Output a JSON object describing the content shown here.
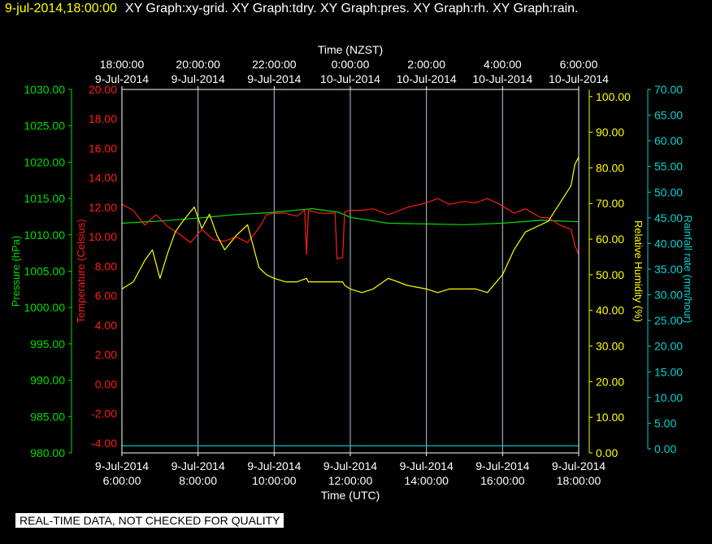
{
  "header": {
    "date": "9-jul-2014,18:00:00",
    "titles": "XY Graph:xy-grid.  XY Graph:tdry.  XY Graph:pres.  XY Graph:rh.  XY Graph:rain."
  },
  "footer": "REAL-TIME DATA, NOT CHECKED FOR QUALITY",
  "colors": {
    "background": "#000000",
    "frame": "#ffffff",
    "grid": "#b4c8dc",
    "pressure": "#00dd00",
    "temperature": "#ff1a1a",
    "humidity": "#ffff00",
    "rain": "#00d2d2"
  },
  "chart_data": {
    "type": "line",
    "grid": true,
    "x_top": {
      "title": "Time (NZST)",
      "ticks": [
        {
          "time": "18:00:00",
          "date": "9-Jul-2014"
        },
        {
          "time": "20:00:00",
          "date": "9-Jul-2014"
        },
        {
          "time": "22:00:00",
          "date": "9-Jul-2014"
        },
        {
          "time": "0:00:00",
          "date": "10-Jul-2014"
        },
        {
          "time": "2:00:00",
          "date": "10-Jul-2014"
        },
        {
          "time": "4:00:00",
          "date": "10-Jul-2014"
        },
        {
          "time": "6:00:00",
          "date": "10-Jul-2014"
        }
      ]
    },
    "x_bottom": {
      "title": "Time (UTC)",
      "ticks": [
        {
          "date": "9-Jul-2014",
          "time": "6:00:00"
        },
        {
          "date": "9-Jul-2014",
          "time": "8:00:00"
        },
        {
          "date": "9-Jul-2014",
          "time": "10:00:00"
        },
        {
          "date": "9-Jul-2014",
          "time": "12:00:00"
        },
        {
          "date": "9-Jul-2014",
          "time": "14:00:00"
        },
        {
          "date": "9-Jul-2014",
          "time": "16:00:00"
        },
        {
          "date": "9-Jul-2014",
          "time": "18:00:00"
        }
      ]
    },
    "x_hours_utc": [
      6,
      18
    ],
    "axes": {
      "pressure": {
        "label": "Pressure (hPa)",
        "ylim": [
          980,
          1030
        ],
        "ticks": [
          "1030.00",
          "1025.00",
          "1020.00",
          "1015.00",
          "1010.00",
          "1005.00",
          "1000.00",
          "995.00",
          "990.00",
          "985.00",
          "980.00"
        ]
      },
      "temperature": {
        "label": "Temperature (Celsius)",
        "ylim": [
          -4.67,
          20
        ],
        "ticks": [
          "20.00",
          "18.00",
          "16.00",
          "14.00",
          "12.00",
          "10.00",
          "8.00",
          "6.00",
          "4.00",
          "2.00",
          "0.00",
          "-2.00",
          "-4.00"
        ]
      },
      "humidity": {
        "label": "Relative Humidity (%)",
        "ylim": [
          0,
          102
        ],
        "ticks": [
          "100.00",
          "90.00",
          "80.00",
          "70.00",
          "60.00",
          "50.00",
          "40.00",
          "30.00",
          "20.00",
          "10.00",
          "0.00"
        ]
      },
      "rain": {
        "label": "Rainfall rate (mm/hour)",
        "ylim": [
          0,
          70
        ],
        "ticks": [
          "70.00",
          "65.00",
          "60.00",
          "55.00",
          "50.00",
          "45.00",
          "40.00",
          "35.00",
          "30.00",
          "25.00",
          "20.00",
          "15.00",
          "10.00",
          "5.00",
          "0.00"
        ]
      }
    },
    "series": [
      {
        "key": "pressure",
        "values": [
          [
            6.0,
            1011.6
          ],
          [
            7.0,
            1011.9
          ],
          [
            8.0,
            1012.3
          ],
          [
            9.0,
            1012.8
          ],
          [
            10.0,
            1013.1
          ],
          [
            11.0,
            1013.6
          ],
          [
            11.7,
            1013.1
          ],
          [
            12.0,
            1012.4
          ],
          [
            13.0,
            1011.6
          ],
          [
            14.0,
            1011.5
          ],
          [
            15.0,
            1011.4
          ],
          [
            16.0,
            1011.6
          ],
          [
            17.0,
            1012.0
          ],
          [
            18.0,
            1011.8
          ]
        ]
      },
      {
        "key": "temperature",
        "values": [
          [
            6.0,
            12.2
          ],
          [
            6.3,
            11.8
          ],
          [
            6.6,
            10.8
          ],
          [
            6.9,
            11.5
          ],
          [
            7.2,
            10.7
          ],
          [
            7.5,
            10.2
          ],
          [
            7.8,
            9.6
          ],
          [
            8.1,
            10.5
          ],
          [
            8.4,
            9.8
          ],
          [
            8.7,
            9.7
          ],
          [
            9.0,
            10.0
          ],
          [
            9.3,
            9.6
          ],
          [
            9.6,
            10.6
          ],
          [
            9.8,
            11.5
          ],
          [
            10.0,
            11.6
          ],
          [
            10.3,
            11.6
          ],
          [
            10.6,
            11.4
          ],
          [
            10.8,
            11.8
          ],
          [
            10.85,
            8.8
          ],
          [
            10.9,
            11.8
          ],
          [
            11.2,
            11.6
          ],
          [
            11.6,
            11.6
          ],
          [
            11.65,
            8.5
          ],
          [
            11.8,
            8.6
          ],
          [
            11.85,
            11.7
          ],
          [
            12.0,
            11.8
          ],
          [
            12.3,
            11.8
          ],
          [
            12.6,
            11.9
          ],
          [
            13.0,
            11.5
          ],
          [
            13.5,
            12.0
          ],
          [
            14.0,
            12.3
          ],
          [
            14.3,
            12.6
          ],
          [
            14.6,
            12.2
          ],
          [
            15.0,
            12.4
          ],
          [
            15.3,
            12.3
          ],
          [
            15.6,
            12.6
          ],
          [
            16.0,
            12.1
          ],
          [
            16.3,
            11.6
          ],
          [
            16.6,
            11.9
          ],
          [
            17.0,
            11.3
          ],
          [
            17.2,
            11.3
          ],
          [
            17.5,
            10.8
          ],
          [
            17.8,
            10.5
          ],
          [
            17.9,
            9.4
          ],
          [
            18.0,
            8.8
          ]
        ]
      },
      {
        "key": "humidity",
        "values": [
          [
            6.0,
            46
          ],
          [
            6.3,
            48
          ],
          [
            6.6,
            54
          ],
          [
            6.8,
            57
          ],
          [
            7.0,
            49
          ],
          [
            7.2,
            56
          ],
          [
            7.4,
            62
          ],
          [
            7.6,
            65
          ],
          [
            7.9,
            69
          ],
          [
            8.1,
            63
          ],
          [
            8.3,
            67
          ],
          [
            8.5,
            61
          ],
          [
            8.7,
            57
          ],
          [
            9.0,
            61
          ],
          [
            9.3,
            64
          ],
          [
            9.6,
            52
          ],
          [
            9.8,
            50
          ],
          [
            10.0,
            49
          ],
          [
            10.3,
            48
          ],
          [
            10.6,
            48
          ],
          [
            10.85,
            49
          ],
          [
            10.9,
            48
          ],
          [
            11.2,
            48
          ],
          [
            11.5,
            48
          ],
          [
            11.6,
            48
          ],
          [
            11.65,
            48
          ],
          [
            11.8,
            48
          ],
          [
            11.85,
            47
          ],
          [
            12.0,
            46
          ],
          [
            12.3,
            45
          ],
          [
            12.6,
            46
          ],
          [
            13.0,
            49
          ],
          [
            13.5,
            47
          ],
          [
            14.0,
            46
          ],
          [
            14.3,
            45
          ],
          [
            14.6,
            46
          ],
          [
            15.0,
            46
          ],
          [
            15.3,
            46
          ],
          [
            15.6,
            45
          ],
          [
            16.0,
            50
          ],
          [
            16.3,
            57
          ],
          [
            16.6,
            62
          ],
          [
            17.0,
            64
          ],
          [
            17.2,
            65
          ],
          [
            17.5,
            70
          ],
          [
            17.8,
            75
          ],
          [
            17.9,
            81
          ],
          [
            18.0,
            83
          ]
        ]
      },
      {
        "key": "rain",
        "values": [
          [
            6.0,
            0.6
          ],
          [
            18.0,
            0.6
          ]
        ]
      }
    ]
  }
}
